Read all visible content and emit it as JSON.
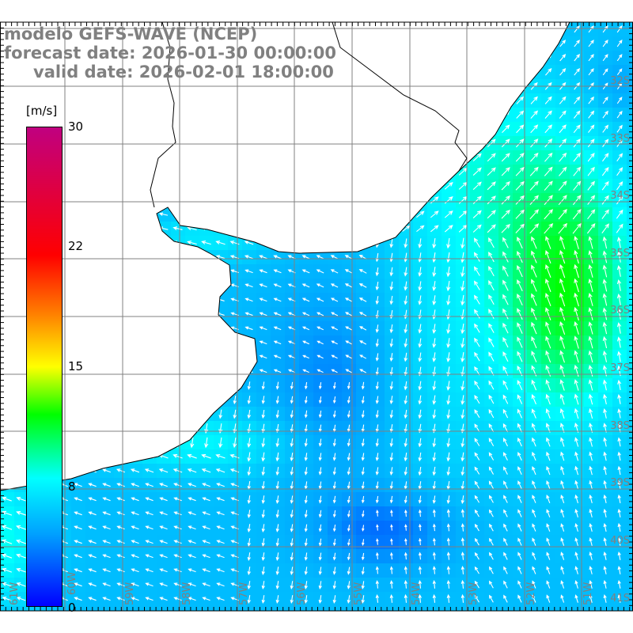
{
  "title": {
    "line1": "modelo GEFS-WAVE (NCEP)",
    "line2": "forecast date: 2026-01-30 00:00:00",
    "line3": "valid date: 2026-02-01 18:00:00"
  },
  "colorbar": {
    "unit": "[m/s]",
    "ticks": [
      "30",
      "22",
      "15",
      "8",
      "0"
    ],
    "tick_values": [
      30,
      22,
      15,
      8,
      0
    ],
    "colors": {
      "0": "#0000ff",
      "8": "#00ffff",
      "15": "#ffff00",
      "22": "#ff0000",
      "30": "#c00080"
    }
  },
  "map": {
    "variable": "wind speed and direction",
    "lon_labels": [
      "61W",
      "60W",
      "59W",
      "58W",
      "57W",
      "56W",
      "55W",
      "54W",
      "53W",
      "52W",
      "51W"
    ],
    "lat_labels": [
      "32S",
      "33S",
      "34S",
      "35S",
      "36S",
      "37S",
      "38S",
      "39S",
      "40S",
      "41S"
    ],
    "grid_color": "#808080",
    "label_color": "#808080",
    "arrow_color": "#ffffff",
    "coast_color": "#000000"
  }
}
